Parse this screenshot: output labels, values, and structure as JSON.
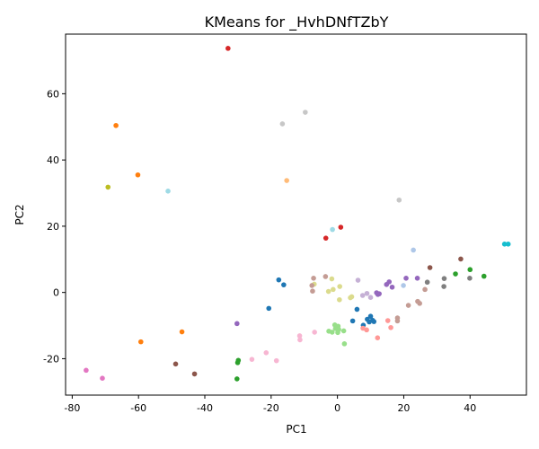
{
  "chart_data": {
    "type": "scatter",
    "title": "KMeans for _HvhDNfTZbY",
    "xlabel": "PC1",
    "ylabel": "PC2",
    "xlim": [
      -82,
      57
    ],
    "ylim": [
      -31,
      78
    ],
    "grid": false,
    "xticks": [
      -80,
      -60,
      -40,
      -20,
      0,
      20,
      40
    ],
    "yticks": [
      -20,
      0,
      20,
      40,
      60
    ],
    "points": [
      {
        "x": -33,
        "y": 73.7,
        "color": "#d62728"
      },
      {
        "x": -66.8,
        "y": 50.4,
        "color": "#ff7f0e"
      },
      {
        "x": -60.2,
        "y": 35.5,
        "color": "#ff7f0e"
      },
      {
        "x": -69.2,
        "y": 31.8,
        "color": "#bcbd22"
      },
      {
        "x": -51.1,
        "y": 30.6,
        "color": "#9edae5"
      },
      {
        "x": -16.6,
        "y": 50.9,
        "color": "#c7c7c7"
      },
      {
        "x": -9.7,
        "y": 54.4,
        "color": "#c7c7c7"
      },
      {
        "x": -15.3,
        "y": 33.8,
        "color": "#ffbb78"
      },
      {
        "x": 18.6,
        "y": 27.9,
        "color": "#c7c7c7"
      },
      {
        "x": 1,
        "y": 19.7,
        "color": "#d62728"
      },
      {
        "x": -3.5,
        "y": 16.4,
        "color": "#d62728"
      },
      {
        "x": -1.5,
        "y": 19.0,
        "color": "#9edae5"
      },
      {
        "x": 22.9,
        "y": 12.8,
        "color": "#aec7e8"
      },
      {
        "x": 50.4,
        "y": 14.6,
        "color": "#17becf"
      },
      {
        "x": 51.5,
        "y": 14.6,
        "color": "#17becf"
      },
      {
        "x": 37.2,
        "y": 10.1,
        "color": "#8c564b"
      },
      {
        "x": 27.9,
        "y": 7.5,
        "color": "#8c564b"
      },
      {
        "x": 40,
        "y": 6.9,
        "color": "#2ca02c"
      },
      {
        "x": 35.6,
        "y": 5.6,
        "color": "#2ca02c"
      },
      {
        "x": 44.2,
        "y": 4.9,
        "color": "#2ca02c"
      },
      {
        "x": 39.9,
        "y": 4.3,
        "color": "#7f7f7f"
      },
      {
        "x": 32.2,
        "y": 4.2,
        "color": "#7f7f7f"
      },
      {
        "x": 27.1,
        "y": 3.1,
        "color": "#7f7f7f"
      },
      {
        "x": 32.1,
        "y": 1.8,
        "color": "#7f7f7f"
      },
      {
        "x": 20.7,
        "y": 4.3,
        "color": "#9467bd"
      },
      {
        "x": 24.1,
        "y": 4.3,
        "color": "#9467bd"
      },
      {
        "x": 15.6,
        "y": 3.2,
        "color": "#9467bd"
      },
      {
        "x": 14.8,
        "y": 2.4,
        "color": "#9467bd"
      },
      {
        "x": 16.5,
        "y": 1.6,
        "color": "#9467bd"
      },
      {
        "x": 19.9,
        "y": 2.1,
        "color": "#aec7e8"
      },
      {
        "x": 11.8,
        "y": -0.1,
        "color": "#9467bd"
      },
      {
        "x": 12.6,
        "y": -0.4,
        "color": "#9467bd"
      },
      {
        "x": 12.2,
        "y": -0.6,
        "color": "#9467bd"
      },
      {
        "x": 26.4,
        "y": 0.9,
        "color": "#c49c94"
      },
      {
        "x": 24.2,
        "y": -2.7,
        "color": "#c49c94"
      },
      {
        "x": 24.8,
        "y": -3.3,
        "color": "#c49c94"
      },
      {
        "x": 21.4,
        "y": -3.9,
        "color": "#c49c94"
      },
      {
        "x": 6.2,
        "y": 3.7,
        "color": "#c5b0d5"
      },
      {
        "x": 8.9,
        "y": -0.3,
        "color": "#c5b0d5"
      },
      {
        "x": 7.6,
        "y": -0.9,
        "color": "#c5b0d5"
      },
      {
        "x": 10,
        "y": -1.5,
        "color": "#c5b0d5"
      },
      {
        "x": -17.7,
        "y": 3.8,
        "color": "#1f77b4"
      },
      {
        "x": -16.2,
        "y": 2.3,
        "color": "#1f77b4"
      },
      {
        "x": -20.7,
        "y": -4.8,
        "color": "#1f77b4"
      },
      {
        "x": -7.2,
        "y": 4.3,
        "color": "#c49c94"
      },
      {
        "x": -3.6,
        "y": 4.8,
        "color": "#c49c94"
      },
      {
        "x": -7,
        "y": 2.5,
        "color": "#dbdb8d"
      },
      {
        "x": -7.7,
        "y": 2.1,
        "color": "#c49c94"
      },
      {
        "x": -7.5,
        "y": 0.4,
        "color": "#c49c94"
      },
      {
        "x": -1.7,
        "y": 4.1,
        "color": "#dbdb8d"
      },
      {
        "x": 0.7,
        "y": 1.8,
        "color": "#dbdb8d"
      },
      {
        "x": -1.3,
        "y": 0.9,
        "color": "#dbdb8d"
      },
      {
        "x": -2.7,
        "y": 0.3,
        "color": "#dbdb8d"
      },
      {
        "x": 4.3,
        "y": -1.3,
        "color": "#dbdb8d"
      },
      {
        "x": 3.9,
        "y": -1.6,
        "color": "#dbdb8d"
      },
      {
        "x": 0.6,
        "y": -2.2,
        "color": "#dbdb8d"
      },
      {
        "x": 5.9,
        "y": -5.1,
        "color": "#1f77b4"
      },
      {
        "x": 4.6,
        "y": -8.6,
        "color": "#1f77b4"
      },
      {
        "x": 10,
        "y": -7.2,
        "color": "#1f77b4"
      },
      {
        "x": 9,
        "y": -8.1,
        "color": "#1f77b4"
      },
      {
        "x": 10.6,
        "y": -8.4,
        "color": "#1f77b4"
      },
      {
        "x": 9.6,
        "y": -8.9,
        "color": "#1f77b4"
      },
      {
        "x": 11,
        "y": -8.8,
        "color": "#1f77b4"
      },
      {
        "x": 7.8,
        "y": -9.9,
        "color": "#1f77b4"
      },
      {
        "x": 15.2,
        "y": -8.5,
        "color": "#ff9896"
      },
      {
        "x": 18.1,
        "y": -7.7,
        "color": "#c49c94"
      },
      {
        "x": 18.1,
        "y": -8.6,
        "color": "#c49c94"
      },
      {
        "x": 16.1,
        "y": -10.6,
        "color": "#ff9896"
      },
      {
        "x": 7.7,
        "y": -10.8,
        "color": "#ff9896"
      },
      {
        "x": 8.8,
        "y": -11.3,
        "color": "#ff9896"
      },
      {
        "x": 12.1,
        "y": -13.7,
        "color": "#ff9896"
      },
      {
        "x": -0.8,
        "y": -9.8,
        "color": "#98df8a"
      },
      {
        "x": 0.2,
        "y": -10.2,
        "color": "#98df8a"
      },
      {
        "x": -0.6,
        "y": -10.9,
        "color": "#98df8a"
      },
      {
        "x": 0.4,
        "y": -11.2,
        "color": "#98df8a"
      },
      {
        "x": -2.6,
        "y": -11.7,
        "color": "#98df8a"
      },
      {
        "x": 1.9,
        "y": -11.6,
        "color": "#98df8a"
      },
      {
        "x": -1.6,
        "y": -12.0,
        "color": "#98df8a"
      },
      {
        "x": 0.1,
        "y": -12.1,
        "color": "#98df8a"
      },
      {
        "x": 2.1,
        "y": -15.5,
        "color": "#98df8a"
      },
      {
        "x": -6.9,
        "y": -12.0,
        "color": "#f7b6d2"
      },
      {
        "x": -11.4,
        "y": -13.1,
        "color": "#f7b6d2"
      },
      {
        "x": -11.3,
        "y": -14.3,
        "color": "#f7b6d2"
      },
      {
        "x": -30.3,
        "y": -9.4,
        "color": "#9467bd"
      },
      {
        "x": -46.9,
        "y": -11.9,
        "color": "#ff7f0e"
      },
      {
        "x": -59.3,
        "y": -14.9,
        "color": "#ff7f0e"
      },
      {
        "x": -21.5,
        "y": -18.2,
        "color": "#f7b6d2"
      },
      {
        "x": -18.4,
        "y": -20.6,
        "color": "#f7b6d2"
      },
      {
        "x": -25.8,
        "y": -20.2,
        "color": "#f7b6d2"
      },
      {
        "x": -29.9,
        "y": -20.5,
        "color": "#2ca02c"
      },
      {
        "x": -30.1,
        "y": -21.2,
        "color": "#2ca02c"
      },
      {
        "x": -30.3,
        "y": -26.1,
        "color": "#2ca02c"
      },
      {
        "x": -48.8,
        "y": -21.6,
        "color": "#8c564b"
      },
      {
        "x": -43.1,
        "y": -24.6,
        "color": "#8c564b"
      },
      {
        "x": -75.8,
        "y": -23.5,
        "color": "#e377c2"
      },
      {
        "x": -70.9,
        "y": -25.9,
        "color": "#e377c2"
      }
    ]
  }
}
